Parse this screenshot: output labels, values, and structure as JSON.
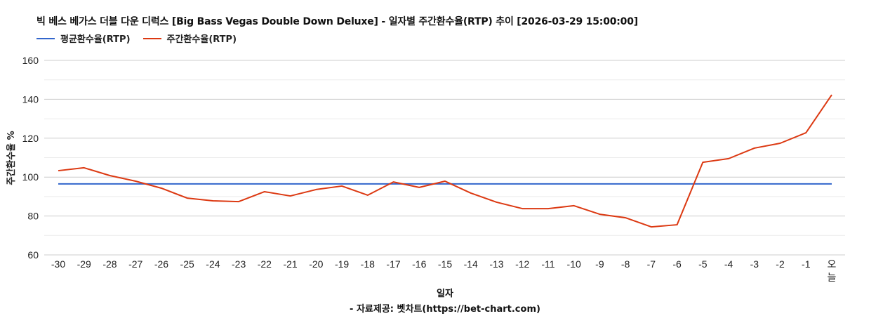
{
  "header": {
    "title": "빅 베스 베가스 더블 다운 디럭스 [Big Bass Vegas Double Down Deluxe] - 일자별 주간환수율(RTP) 추이 [2026-03-29 15:00:00]"
  },
  "legend": {
    "items": [
      {
        "label": "평균환수율(RTP)",
        "color": "#3366cc"
      },
      {
        "label": "주간환수율(RTP)",
        "color": "#dc3912"
      }
    ]
  },
  "axes": {
    "xlabel": "일자",
    "ylabel": "주간환수율 %"
  },
  "footer": {
    "source": "- 자료제공: 벳차트(https://bet-chart.com)"
  },
  "chart_data": {
    "type": "line",
    "title": "빅 베스 베가스 더블 다운 디럭스 [Big Bass Vegas Double Down Deluxe] - 일자별 주간환수율(RTP) 추이 [2026-03-29 15:00:00]",
    "xlabel": "일자",
    "ylabel": "주간환수율 %",
    "ylim": [
      60,
      160
    ],
    "yticks": [
      60,
      80,
      100,
      120,
      140,
      160
    ],
    "grid": true,
    "legend_position": "top-left",
    "categories": [
      "-30",
      "-29",
      "-28",
      "-27",
      "-26",
      "-25",
      "-24",
      "-23",
      "-22",
      "-21",
      "-20",
      "-19",
      "-18",
      "-17",
      "-16",
      "-15",
      "-14",
      "-13",
      "-12",
      "-11",
      "-10",
      "-9",
      "-8",
      "-7",
      "-6",
      "-5",
      "-4",
      "-3",
      "-2",
      "-1",
      "오늘"
    ],
    "series": [
      {
        "name": "평균환수율(RTP)",
        "color": "#3366cc",
        "values": [
          96.5,
          96.5,
          96.5,
          96.5,
          96.5,
          96.5,
          96.5,
          96.5,
          96.5,
          96.5,
          96.5,
          96.5,
          96.5,
          96.5,
          96.5,
          96.5,
          96.5,
          96.5,
          96.5,
          96.5,
          96.5,
          96.5,
          96.5,
          96.5,
          96.5,
          96.5,
          96.5,
          96.5,
          96.5,
          96.5,
          96.5
        ]
      },
      {
        "name": "주간환수율(RTP)",
        "color": "#dc3912",
        "values": [
          103.3,
          104.8,
          100.8,
          97.9,
          94.3,
          89.2,
          87.8,
          87.4,
          92.5,
          90.3,
          93.6,
          95.4,
          90.7,
          97.5,
          94.7,
          97.9,
          91.8,
          87.1,
          83.8,
          83.8,
          85.3,
          80.9,
          79.1,
          74.4,
          75.5,
          107.6,
          109.5,
          114.9,
          117.4,
          122.8,
          142.3
        ]
      }
    ]
  }
}
